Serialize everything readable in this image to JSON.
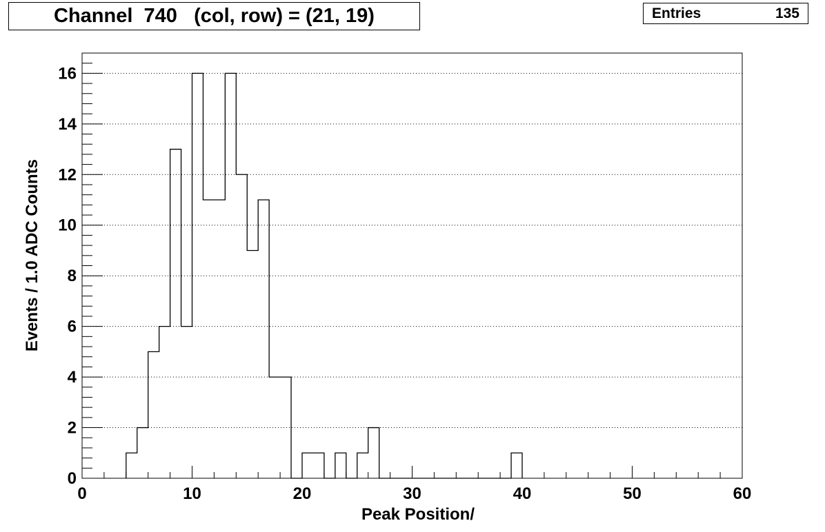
{
  "title": "Channel  740   (col, row) = (21, 19)",
  "stats": {
    "label": "Entries",
    "value": "135"
  },
  "chart_data": {
    "type": "bar",
    "style": "step-histogram",
    "title": "Channel  740   (col, row) = (21, 19)",
    "xlabel": "Peak Position/",
    "ylabel": "Events / 1.0 ADC Counts",
    "xlim": [
      0,
      60
    ],
    "ylim": [
      0,
      16.8
    ],
    "bin_width": 1,
    "bin_edges_start": [
      4,
      5,
      6,
      7,
      8,
      9,
      10,
      11,
      12,
      13,
      14,
      15,
      16,
      17,
      18,
      19,
      20,
      21,
      22,
      23,
      24,
      25,
      26,
      27,
      28,
      29,
      30,
      31,
      32,
      33,
      34,
      35,
      36,
      37,
      38,
      39
    ],
    "values": [
      1,
      2,
      5,
      6,
      13,
      6,
      16,
      11,
      11,
      16,
      12,
      9,
      11,
      4,
      4,
      0,
      1,
      1,
      0,
      1,
      0,
      1,
      2,
      0,
      0,
      0,
      0,
      0,
      0,
      0,
      0,
      0,
      0,
      0,
      0,
      1
    ],
    "x_ticks": [
      "0",
      "10",
      "20",
      "30",
      "40",
      "50",
      "60"
    ],
    "y_ticks": [
      "0",
      "2",
      "4",
      "6",
      "8",
      "10",
      "12",
      "14",
      "16"
    ],
    "grid": "horizontal-dotted",
    "legend": "none",
    "line_color": "#000000"
  }
}
